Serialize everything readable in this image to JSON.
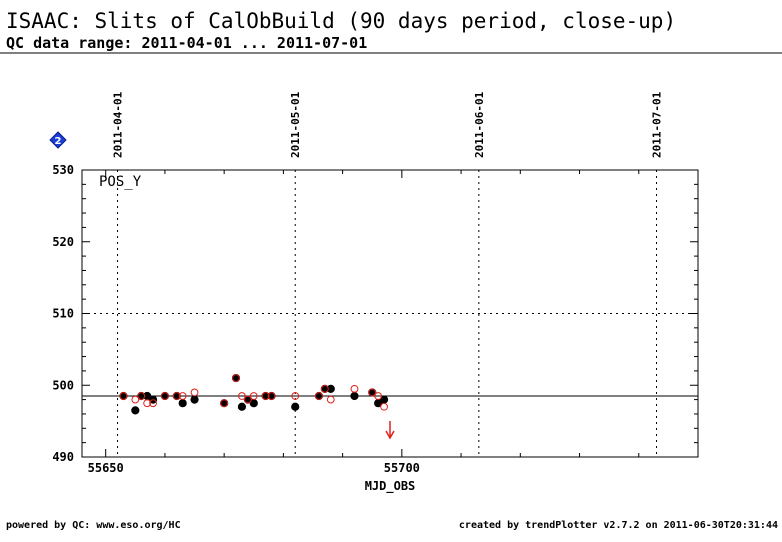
{
  "header": {
    "title": "ISAAC: Slits of CalObBuild (90 days period, close-up)",
    "subtitle": "QC data range: 2011-04-01 ... 2011-07-01"
  },
  "footer": {
    "left": "powered by QC: www.eso.org/HC",
    "right": "created by trendPlotter v2.7.2 on 2011-06-30T20:31:44"
  },
  "badge": {
    "icon": "diamond-2-icon",
    "text": "2",
    "color": "#1a3fd6"
  },
  "chart_data": {
    "type": "scatter",
    "panel_label": "POS_Y",
    "xlabel": "MJD_OBS",
    "ylabel": "",
    "xlim": [
      55646,
      55750
    ],
    "ylim": [
      490,
      530
    ],
    "x_ticks": [
      55650,
      55700
    ],
    "x_tick_labels": [
      "55650",
      "55700"
    ],
    "y_ticks": [
      490,
      500,
      510,
      520,
      530
    ],
    "y_tick_labels": [
      "490",
      "500",
      "510",
      "520",
      "530"
    ],
    "y_gridlines": [
      510
    ],
    "reference_line": 498.5,
    "date_markers": [
      {
        "x": 55652,
        "label": "2011-04-01"
      },
      {
        "x": 55682,
        "label": "2011-05-01"
      },
      {
        "x": 55713,
        "label": "2011-06-01"
      },
      {
        "x": 55743,
        "label": "2011-07-01"
      }
    ],
    "out_of_range_arrow": {
      "x": 55698,
      "direction": "down",
      "color": "#e0201b"
    },
    "series": [
      {
        "marker": "filled-circle",
        "color": "#000000",
        "x": [
          55653,
          55655,
          55656,
          55657,
          55658,
          55660,
          55662,
          55663,
          55665,
          55670,
          55672,
          55673,
          55674,
          55675,
          55677,
          55678,
          55682,
          55686,
          55687,
          55688,
          55692,
          55695,
          55696,
          55697
        ],
        "y": [
          498.5,
          496.5,
          498.5,
          498.5,
          498.0,
          498.5,
          498.5,
          497.5,
          498.0,
          497.5,
          501.0,
          497.0,
          498.0,
          497.5,
          498.5,
          498.5,
          497.0,
          498.5,
          499.5,
          499.5,
          498.5,
          499.0,
          497.5,
          498.0
        ]
      },
      {
        "marker": "open-circle",
        "color": "#e0201b",
        "x": [
          55653,
          55655,
          55656,
          55657,
          55658,
          55660,
          55662,
          55663,
          55665,
          55670,
          55672,
          55673,
          55674,
          55675,
          55677,
          55678,
          55682,
          55686,
          55687,
          55688,
          55692,
          55695,
          55696,
          55697
        ],
        "y": [
          498.5,
          498.0,
          498.5,
          497.5,
          497.5,
          498.5,
          498.5,
          498.5,
          499.0,
          497.5,
          501.0,
          498.5,
          498.0,
          498.5,
          498.5,
          498.5,
          498.5,
          498.5,
          499.5,
          498.0,
          499.5,
          499.0,
          498.5,
          497.0
        ]
      }
    ]
  }
}
